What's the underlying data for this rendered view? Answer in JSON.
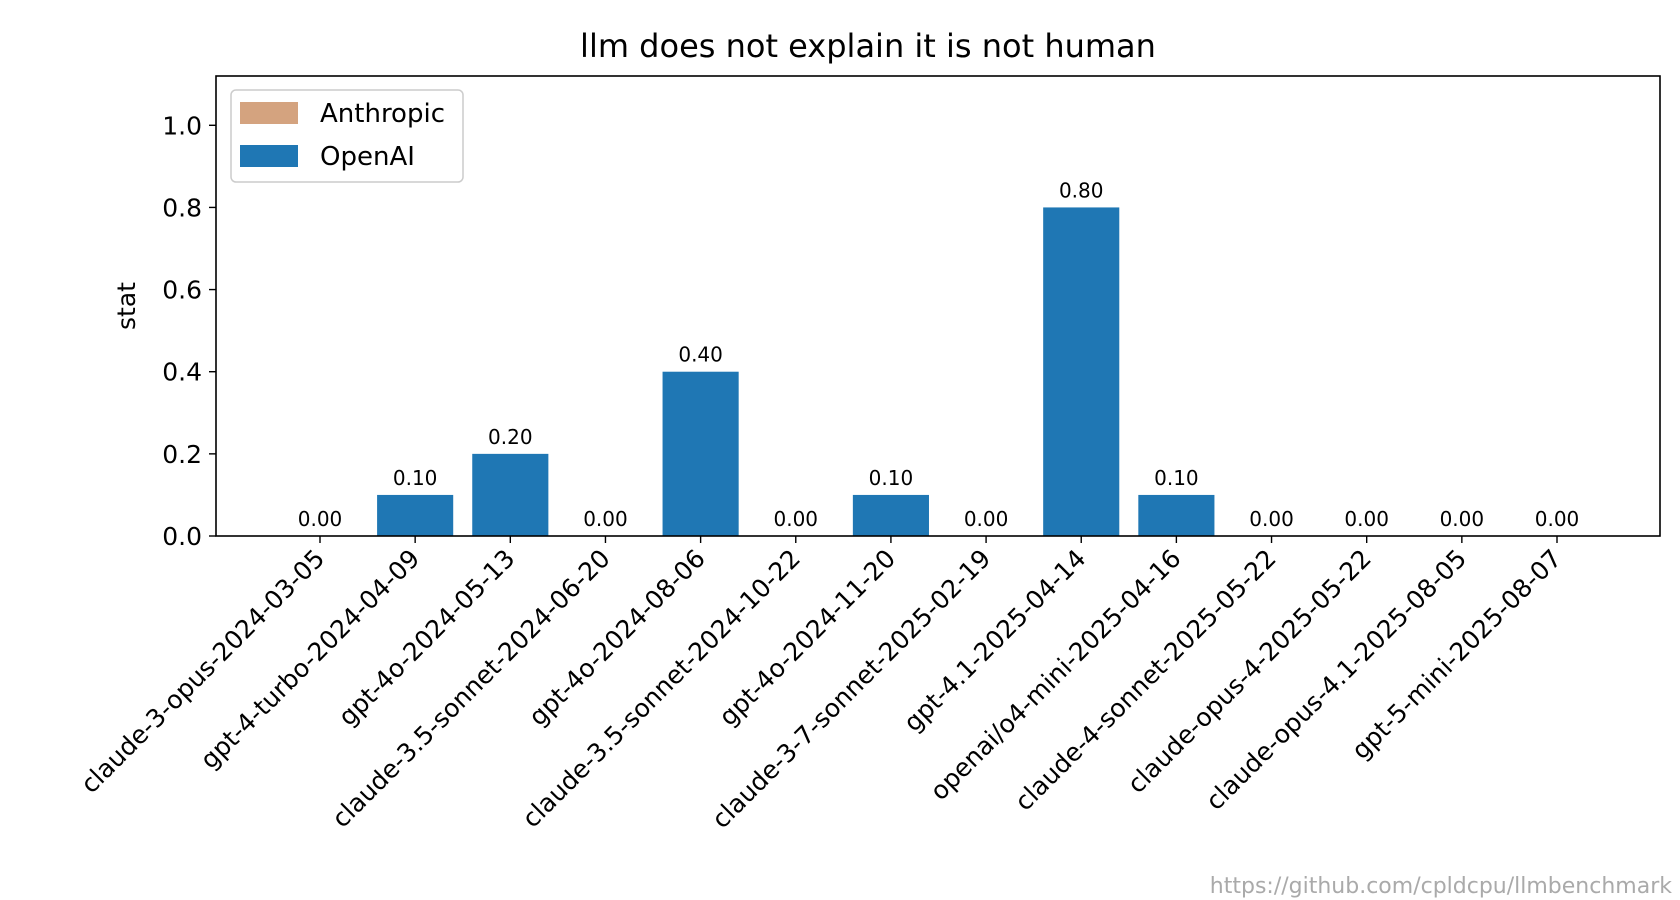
{
  "chart_data": {
    "type": "bar",
    "title": "llm does not explain it is not human",
    "xlabel": "",
    "ylabel": "stat",
    "ylim": [
      0,
      1.12
    ],
    "yticks": [
      0.0,
      0.2,
      0.4,
      0.6,
      0.8,
      1.0
    ],
    "ytick_labels": [
      "0.0",
      "0.2",
      "0.4",
      "0.6",
      "0.8",
      "1.0"
    ],
    "grid": false,
    "legend_position": "top-left",
    "categories": [
      "claude-3-opus-2024-03-05",
      "gpt-4-turbo-2024-04-09",
      "gpt-4o-2024-05-13",
      "claude-3.5-sonnet-2024-06-20",
      "gpt-4o-2024-08-06",
      "claude-3.5-sonnet-2024-10-22",
      "gpt-4o-2024-11-20",
      "claude-3-7-sonnet-2025-02-19",
      "gpt-4.1-2025-04-14",
      "openai/o4-mini-2025-04-16",
      "claude-4-sonnet-2025-05-22",
      "claude-opus-4-2025-05-22",
      "claude-opus-4.1-2025-08-05",
      "gpt-5-mini-2025-08-07"
    ],
    "values": [
      0.0,
      0.1,
      0.2,
      0.0,
      0.4,
      0.0,
      0.1,
      0.0,
      0.8,
      0.1,
      0.0,
      0.0,
      0.0,
      0.0
    ],
    "value_labels": [
      "0.00",
      "0.10",
      "0.20",
      "0.00",
      "0.40",
      "0.00",
      "0.10",
      "0.00",
      "0.80",
      "0.10",
      "0.00",
      "0.00",
      "0.00",
      "0.00"
    ],
    "bar_series": [
      "Anthropic",
      "OpenAI",
      "OpenAI",
      "Anthropic",
      "OpenAI",
      "Anthropic",
      "OpenAI",
      "Anthropic",
      "OpenAI",
      "OpenAI",
      "Anthropic",
      "Anthropic",
      "Anthropic",
      "OpenAI"
    ],
    "series": [
      {
        "name": "Anthropic",
        "color": "#d4a37f"
      },
      {
        "name": "OpenAI",
        "color": "#1f77b4"
      }
    ]
  },
  "watermark": "https://github.com/cpldcpu/llmbenchmark"
}
